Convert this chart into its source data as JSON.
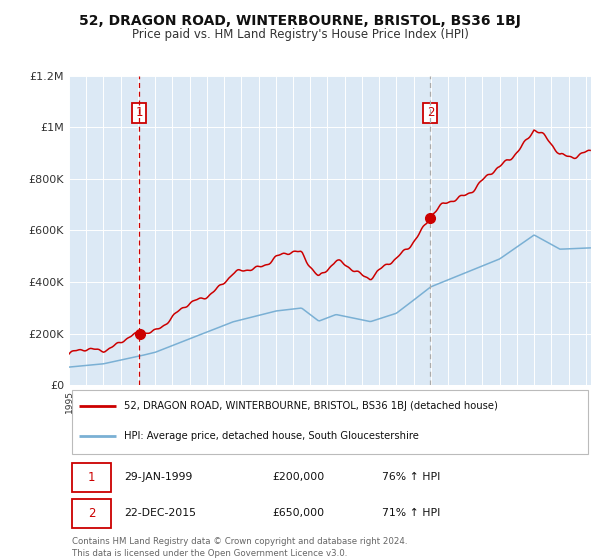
{
  "title": "52, DRAGON ROAD, WINTERBOURNE, BRISTOL, BS36 1BJ",
  "subtitle": "Price paid vs. HM Land Registry's House Price Index (HPI)",
  "title_fontsize": 10,
  "subtitle_fontsize": 8.5,
  "bg_color": "#dce9f5",
  "fig_bg_color": "#ffffff",
  "red_line_color": "#cc0000",
  "blue_line_color": "#7ab0d4",
  "marker_color": "#cc0000",
  "sale1_year": 1999.08,
  "sale1_price": 200000,
  "sale1_label": "29-JAN-1999",
  "sale1_price_str": "£200,000",
  "sale1_hpi": "76% ↑ HPI",
  "sale2_year": 2015.98,
  "sale2_price": 650000,
  "sale2_label": "22-DEC-2015",
  "sale2_price_str": "£650,000",
  "sale2_hpi": "71% ↑ HPI",
  "legend_line1": "52, DRAGON ROAD, WINTERBOURNE, BRISTOL, BS36 1BJ (detached house)",
  "legend_line2": "HPI: Average price, detached house, South Gloucestershire",
  "footer1": "Contains HM Land Registry data © Crown copyright and database right 2024.",
  "footer2": "This data is licensed under the Open Government Licence v3.0.",
  "ylim": [
    0,
    1200000
  ],
  "xlim_start": 1995.0,
  "xlim_end": 2025.3,
  "yticks": [
    0,
    200000,
    400000,
    600000,
    800000,
    1000000,
    1200000
  ],
  "ytick_labels": [
    "£0",
    "£200K",
    "£400K",
    "£600K",
    "£800K",
    "£1M",
    "£1.2M"
  ]
}
